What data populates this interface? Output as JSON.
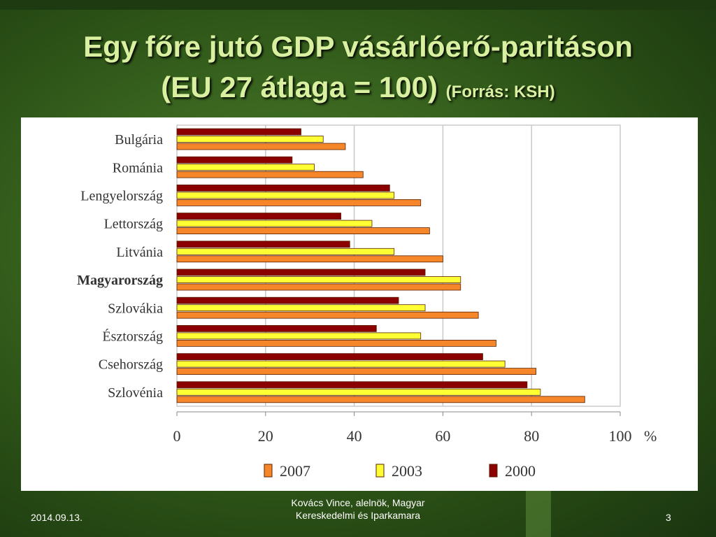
{
  "slide": {
    "title_line1": "Egy főre jutó GDP vásárlóerő-paritáson",
    "title_line2": "(EU 27 átlaga = 100)",
    "title_source": "(Forrás: KSH)"
  },
  "footer": {
    "date": "2014.09.13.",
    "author_line1": "Kovács Vince, alelnök, Magyar",
    "author_line2": "Kereskedelmi és Iparkamara",
    "page": "3"
  },
  "colors": {
    "s2007": "#f5872a",
    "s2003": "#ffff33",
    "s2000": "#8b0000",
    "grid": "#c8c8c8"
  },
  "chart_data": {
    "type": "bar",
    "orientation": "horizontal",
    "categories": [
      "Bulgária",
      "Románia",
      "Lengyelország",
      "Lettország",
      "Litvánia",
      "Magyarország",
      "Szlovákia",
      "Észtország",
      "Csehország",
      "Szlovénia"
    ],
    "highlighted_category": "Magyarország",
    "series": [
      {
        "name": "2000",
        "values": [
          28,
          26,
          48,
          37,
          39,
          56,
          50,
          45,
          69,
          79
        ]
      },
      {
        "name": "2003",
        "values": [
          33,
          31,
          49,
          44,
          49,
          64,
          56,
          55,
          74,
          82
        ]
      },
      {
        "name": "2007",
        "values": [
          38,
          42,
          55,
          57,
          60,
          64,
          68,
          72,
          81,
          92
        ]
      }
    ],
    "legend_order": [
      "2007",
      "2003",
      "2000"
    ],
    "legend_position": "bottom",
    "xlim": [
      0,
      100
    ],
    "xticks": [
      "0",
      "20",
      "40",
      "60",
      "80",
      "100"
    ],
    "xunit": "%",
    "grid": true
  }
}
